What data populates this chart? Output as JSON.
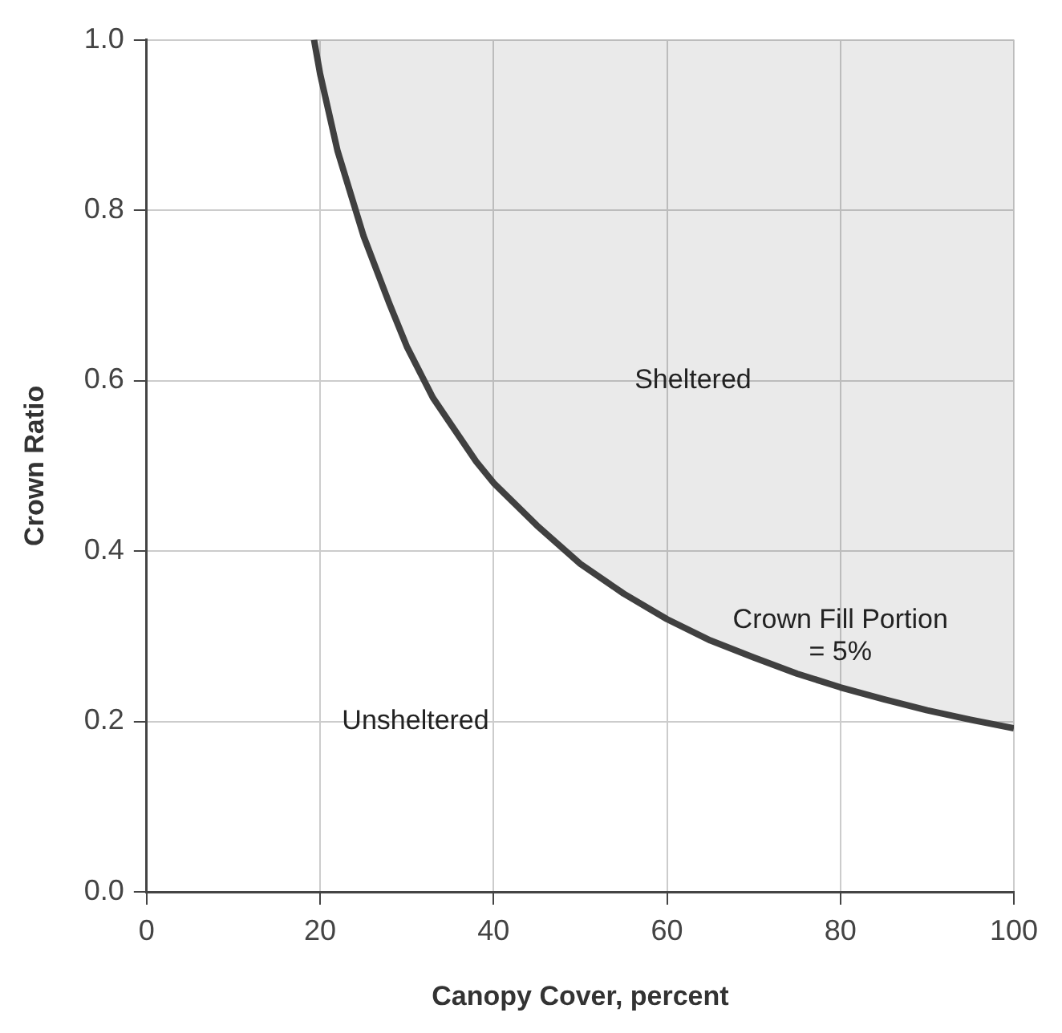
{
  "chart_data": {
    "type": "line",
    "xlabel": "Canopy Cover, percent",
    "ylabel": "Crown Ratio",
    "x": [
      19.3,
      20,
      22,
      25,
      28,
      30,
      33,
      35,
      38,
      40,
      45,
      50,
      55,
      60,
      65,
      70,
      75,
      80,
      85,
      90,
      95,
      100
    ],
    "series": [
      {
        "color": "#404040",
        "values": [
          1.0,
          0.96,
          0.87,
          0.77,
          0.69,
          0.64,
          0.58,
          0.55,
          0.505,
          0.48,
          0.43,
          0.385,
          0.35,
          0.32,
          0.295,
          0.275,
          0.256,
          0.24,
          0.226,
          0.213,
          0.202,
          0.192
        ]
      }
    ],
    "xlim": [
      0,
      100
    ],
    "xticks": [
      0,
      20,
      40,
      60,
      80,
      100
    ],
    "ylim": [
      0,
      1
    ],
    "yticks": [
      {
        "value": 0,
        "label": "0.0"
      },
      {
        "value": 0.2,
        "label": "0.2"
      },
      {
        "value": 0.4,
        "label": "0.4"
      },
      {
        "value": 0.6,
        "label": "0.6"
      },
      {
        "value": 0.8,
        "label": "0.8"
      },
      {
        "value": 1,
        "label": "1.0"
      }
    ],
    "grid": true,
    "legend": false,
    "marker": "none",
    "line_style": "solid",
    "annotations": [
      "Sheltered",
      "Unsheltered",
      "Crown Fill Portion\n= 5%"
    ]
  }
}
